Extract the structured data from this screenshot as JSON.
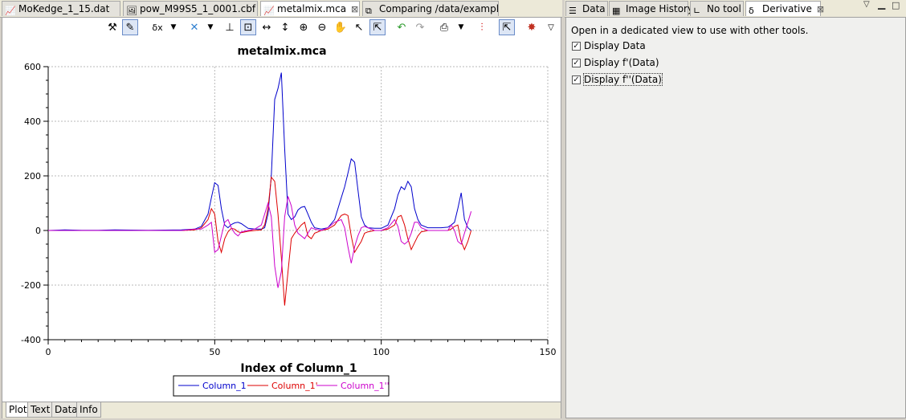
{
  "editor_tabs": [
    {
      "label": "MoKedge_1_15.dat",
      "icon": "line-chart-icon",
      "active": false
    },
    {
      "label": "pow_M99S5_1_0001.cbf",
      "icon": "image-file-icon",
      "active": false
    },
    {
      "label": "metalmix.mca",
      "icon": "line-chart-icon",
      "active": true,
      "close": "⊠"
    },
    {
      "label": "Comparing /data/exampl",
      "icon": "compare-icon",
      "active": false
    }
  ],
  "view_tabs": [
    {
      "label": "Data",
      "icon": "data-table-icon"
    },
    {
      "label": "Image History",
      "icon": "image-history-icon"
    },
    {
      "label": "No tool",
      "icon": "no-tool-icon"
    },
    {
      "label": "Derivative",
      "icon": "derivative-icon",
      "active": true,
      "close": "⊠"
    }
  ],
  "derivative_panel": {
    "hint": "Open in a dedicated view to use with other tools.",
    "options": [
      {
        "label": "Display Data",
        "checked": true
      },
      {
        "label": "Display f'(Data)",
        "checked": true
      },
      {
        "label": "Display f''(Data)",
        "checked": true
      }
    ]
  },
  "bottom_tabs": [
    {
      "label": "Plot",
      "active": true
    },
    {
      "label": "Text",
      "active": false
    },
    {
      "label": "Data",
      "active": false
    },
    {
      "label": "Info",
      "active": false
    }
  ],
  "chart_data": {
    "type": "line",
    "title": "metalmix.mca",
    "xlabel": "Index of Column_1",
    "ylabel": "",
    "xlim": [
      0,
      150
    ],
    "ylim": [
      -400,
      600
    ],
    "xticks": [
      "0",
      "50",
      "100",
      "150"
    ],
    "yticks": [
      "600",
      "400",
      "200",
      "0",
      "-200",
      "-400"
    ],
    "grid": true,
    "legend_position": "bottom-center",
    "x": [
      0,
      5,
      10,
      15,
      20,
      30,
      40,
      44,
      46,
      48,
      49,
      50,
      51,
      52,
      53,
      54,
      55,
      56,
      57,
      58,
      60,
      62,
      64,
      65,
      66,
      67,
      68,
      69,
      70,
      71,
      72,
      73,
      74,
      75,
      76,
      77,
      78,
      79,
      80,
      82,
      84,
      86,
      88,
      89,
      90,
      91,
      92,
      93,
      94,
      95,
      96,
      98,
      100,
      102,
      104,
      105,
      106,
      107,
      108,
      109,
      110,
      111,
      112,
      114,
      116,
      118,
      120,
      121,
      122,
      123,
      124,
      125,
      126,
      127
    ],
    "series": [
      {
        "name": "Column_1",
        "color": "#0000cc",
        "values": [
          0,
          2,
          1,
          1,
          2,
          1,
          2,
          5,
          15,
          60,
          120,
          175,
          165,
          80,
          20,
          10,
          22,
          28,
          30,
          25,
          8,
          5,
          5,
          10,
          60,
          200,
          480,
          520,
          578,
          300,
          60,
          40,
          50,
          75,
          85,
          88,
          60,
          30,
          10,
          5,
          10,
          40,
          120,
          160,
          210,
          262,
          250,
          150,
          50,
          20,
          10,
          8,
          8,
          20,
          80,
          130,
          160,
          150,
          180,
          160,
          80,
          40,
          20,
          10,
          10,
          10,
          12,
          20,
          30,
          80,
          138,
          40,
          10,
          0
        ]
      },
      {
        "name": "Column_1'",
        "color": "#dd0000",
        "values": [
          0,
          0,
          0,
          0,
          0,
          0,
          0,
          2,
          10,
          40,
          80,
          60,
          -40,
          -80,
          -30,
          -5,
          8,
          5,
          -5,
          -8,
          -3,
          0,
          2,
          20,
          80,
          195,
          180,
          60,
          -100,
          -275,
          -150,
          -30,
          -10,
          5,
          20,
          30,
          -20,
          -30,
          -10,
          0,
          5,
          20,
          55,
          60,
          55,
          -20,
          -80,
          -60,
          -40,
          -10,
          -5,
          0,
          0,
          5,
          20,
          50,
          55,
          20,
          -30,
          -70,
          -45,
          -20,
          -5,
          0,
          0,
          0,
          0,
          5,
          15,
          20,
          -40,
          -70,
          -40,
          0
        ]
      },
      {
        "name": "Column_1''",
        "color": "#cc00cc",
        "values": [
          0,
          0,
          0,
          0,
          0,
          0,
          0,
          5,
          5,
          20,
          30,
          -80,
          -70,
          -20,
          30,
          40,
          10,
          -10,
          -20,
          -5,
          0,
          5,
          20,
          60,
          100,
          50,
          -130,
          -210,
          -150,
          50,
          125,
          90,
          20,
          -10,
          -20,
          -30,
          -10,
          10,
          5,
          0,
          10,
          30,
          40,
          10,
          -60,
          -120,
          -60,
          -20,
          10,
          15,
          10,
          0,
          0,
          10,
          40,
          15,
          -40,
          -50,
          -40,
          -10,
          30,
          30,
          10,
          0,
          0,
          0,
          0,
          20,
          0,
          -40,
          -50,
          -10,
          30,
          70
        ]
      }
    ]
  }
}
